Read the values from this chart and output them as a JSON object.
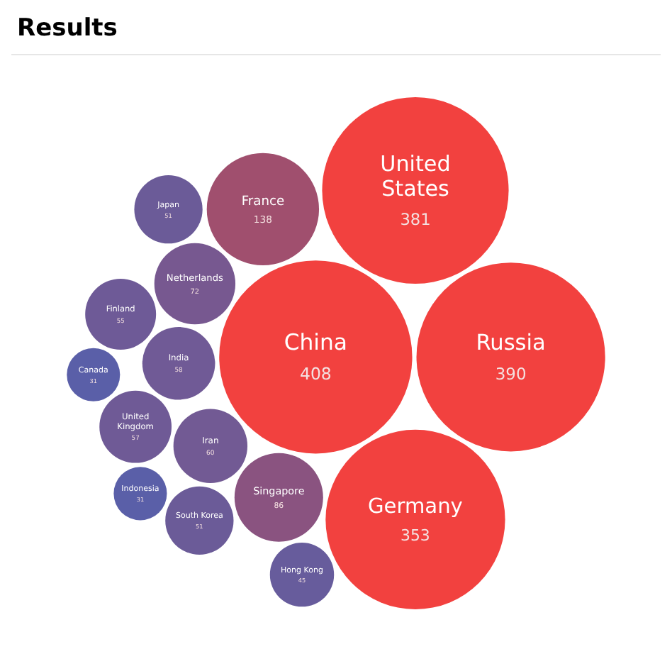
{
  "chart_data": {
    "type": "other",
    "title": "Results",
    "categories": [
      "China",
      "Russia",
      "United States",
      "Germany",
      "France",
      "Singapore",
      "Netherlands",
      "Iran",
      "India",
      "United Kingdom",
      "Finland",
      "South Korea",
      "Japan",
      "Hong Kong",
      "Indonesia",
      "Canada"
    ],
    "values": [
      408,
      390,
      381,
      353,
      138,
      86,
      72,
      60,
      58,
      57,
      55,
      51,
      51,
      45,
      31,
      31
    ],
    "colors": [
      "#f2413f",
      "#f2413f",
      "#f2413f",
      "#f2413f",
      "#a04f6e",
      "#8a5380",
      "#775890",
      "#725a94",
      "#705a96",
      "#6f5a96",
      "#6e5a97",
      "#6b5b98",
      "#6b5b98",
      "#675c9c",
      "#5a5fa8",
      "#5a5fa8"
    ],
    "data_labels": true
  }
}
